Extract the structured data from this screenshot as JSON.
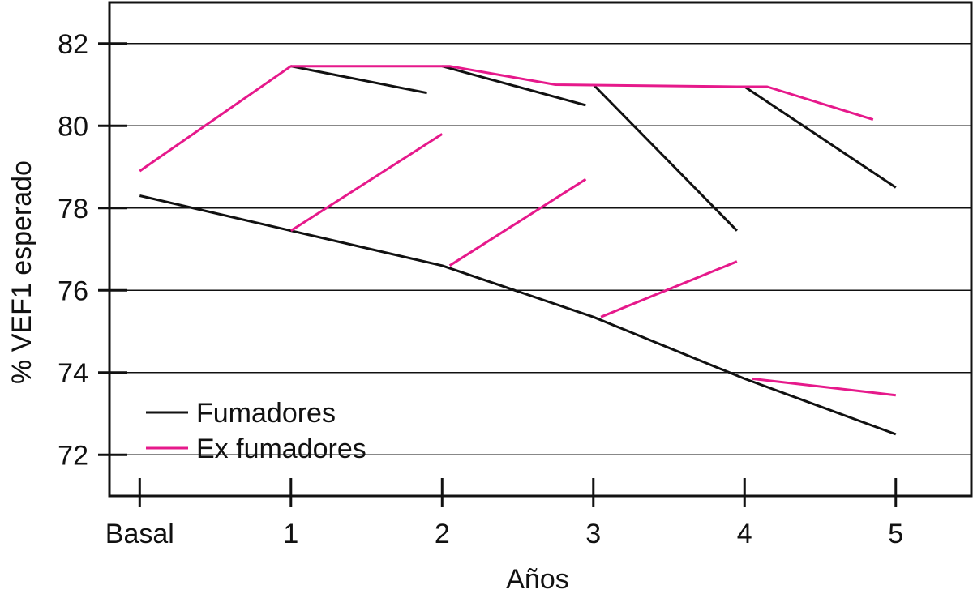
{
  "chart_data": {
    "type": "line",
    "title": "",
    "xlabel": "Años",
    "ylabel": "% VEF1 esperado",
    "ylim": [
      71.0,
      83.0
    ],
    "xlim": [
      -0.2,
      5.5
    ],
    "grid": true,
    "legend_position": "bottom-left",
    "categories": [
      "Basal",
      "1",
      "2",
      "3",
      "4",
      "5"
    ],
    "yticks": [
      72,
      74,
      76,
      78,
      80,
      82
    ],
    "series": [
      {
        "name": "Fumadores",
        "color": "#111111",
        "segments": [
          [
            [
              0,
              78.3
            ],
            [
              1,
              77.45
            ],
            [
              2,
              76.6
            ],
            [
              3,
              75.35
            ],
            [
              4,
              73.85
            ],
            [
              5,
              72.5
            ]
          ],
          [
            [
              1,
              81.45
            ],
            [
              1.9,
              80.8
            ]
          ],
          [
            [
              2,
              81.45
            ],
            [
              2.95,
              80.5
            ]
          ],
          [
            [
              3,
              81.0
            ],
            [
              3.95,
              77.45
            ]
          ],
          [
            [
              4,
              80.95
            ],
            [
              5,
              78.5
            ]
          ]
        ]
      },
      {
        "name": "Ex fumadores",
        "color": "#e6198b",
        "segments": [
          [
            [
              0,
              78.9
            ],
            [
              1,
              81.45
            ],
            [
              2.05,
              81.45
            ],
            [
              2.75,
              81.0
            ],
            [
              3.95,
              80.95
            ],
            [
              4.15,
              80.95
            ],
            [
              4.85,
              80.15
            ]
          ],
          [
            [
              1,
              77.45
            ],
            [
              2,
              79.8
            ]
          ],
          [
            [
              2.05,
              76.6
            ],
            [
              2.95,
              78.7
            ]
          ],
          [
            [
              3.05,
              75.35
            ],
            [
              3.95,
              76.7
            ]
          ],
          [
            [
              4.05,
              73.85
            ],
            [
              5,
              73.45
            ]
          ]
        ]
      }
    ]
  }
}
